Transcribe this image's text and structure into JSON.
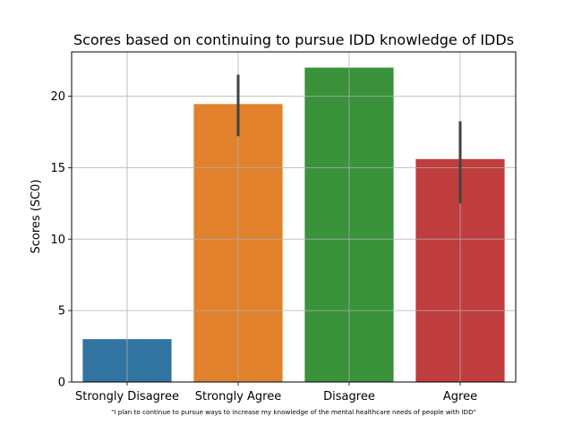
{
  "chart_data": {
    "type": "bar",
    "title": "Scores based on continuing to pursue IDD knowledge of IDDs",
    "xlabel": "\"I plan to continue to pursue ways to increase my knowledge of the mental healthcare needs of people with IDD\"",
    "ylabel": "Scores (SC0)",
    "categories": [
      "Strongly Disagree",
      "Strongly Agree",
      "Disagree",
      "Agree"
    ],
    "values": [
      3.0,
      19.45,
      22.0,
      15.6
    ],
    "error_low": [
      3.0,
      17.2,
      22.0,
      12.5
    ],
    "error_high": [
      3.0,
      21.5,
      22.0,
      18.25
    ],
    "colors": [
      "#3274a1",
      "#e1812c",
      "#3a923a",
      "#c03d3e"
    ],
    "error_color": "#424242",
    "ylim": [
      0,
      23.1
    ],
    "yticks": [
      0,
      5,
      10,
      15,
      20
    ],
    "grid": true
  }
}
